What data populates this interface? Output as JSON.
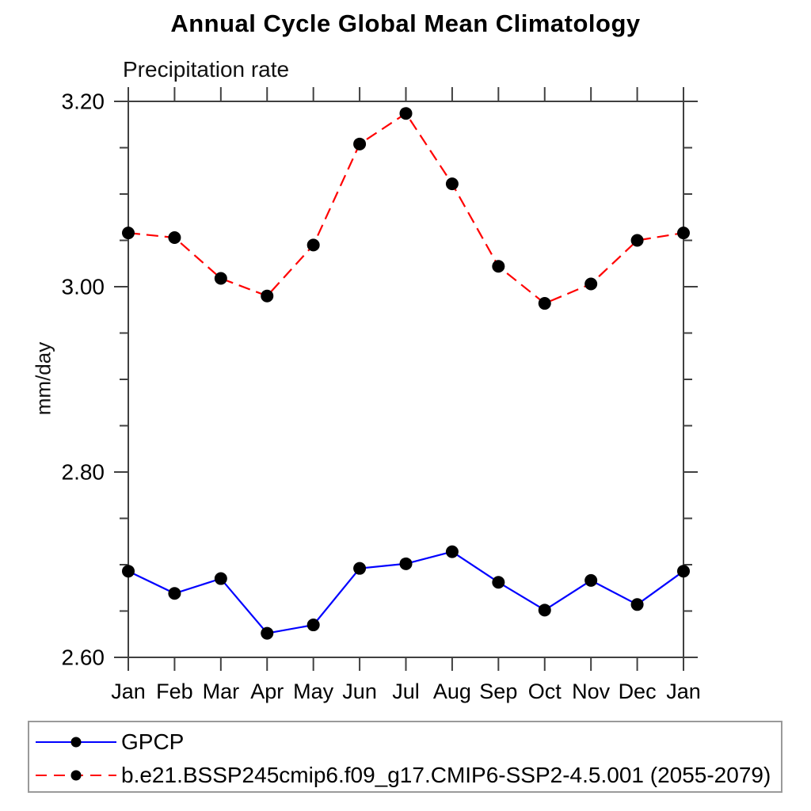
{
  "chart_data": {
    "type": "line",
    "title": "Annual Cycle Global Mean Climatology",
    "subtitle": "Precipitation rate",
    "ylabel": "mm/day",
    "categories": [
      "Jan",
      "Feb",
      "Mar",
      "Apr",
      "May",
      "Jun",
      "Jul",
      "Aug",
      "Sep",
      "Oct",
      "Nov",
      "Dec",
      "Jan"
    ],
    "ylim": [
      2.6,
      3.2
    ],
    "ytick_major": [
      3.2,
      3.0,
      2.8,
      2.6
    ],
    "ytick_major_labels": [
      "3.20",
      "3.00",
      "2.80",
      "2.60"
    ],
    "ytick_minor_step": 0.05,
    "grid": false,
    "legend_position": "bottom-left-box",
    "axis_color": "#404040",
    "series": [
      {
        "name": "GPCP",
        "color": "#0000ff",
        "style": "solid",
        "marker": "filled-circle",
        "marker_color": "#000000",
        "values": [
          2.693,
          2.669,
          2.685,
          2.626,
          2.635,
          2.696,
          2.701,
          2.714,
          2.681,
          2.651,
          2.683,
          2.657,
          2.693
        ]
      },
      {
        "name": "b.e21.BSSP245cmip6.f09_g17.CMIP6-SSP2-4.5.001 (2055-2079)",
        "color": "#ff0000",
        "style": "dashed",
        "marker": "filled-circle",
        "marker_color": "#000000",
        "values": [
          3.058,
          3.053,
          3.009,
          2.99,
          3.045,
          3.154,
          3.187,
          3.111,
          3.022,
          2.982,
          3.003,
          3.05,
          3.058
        ]
      }
    ]
  }
}
